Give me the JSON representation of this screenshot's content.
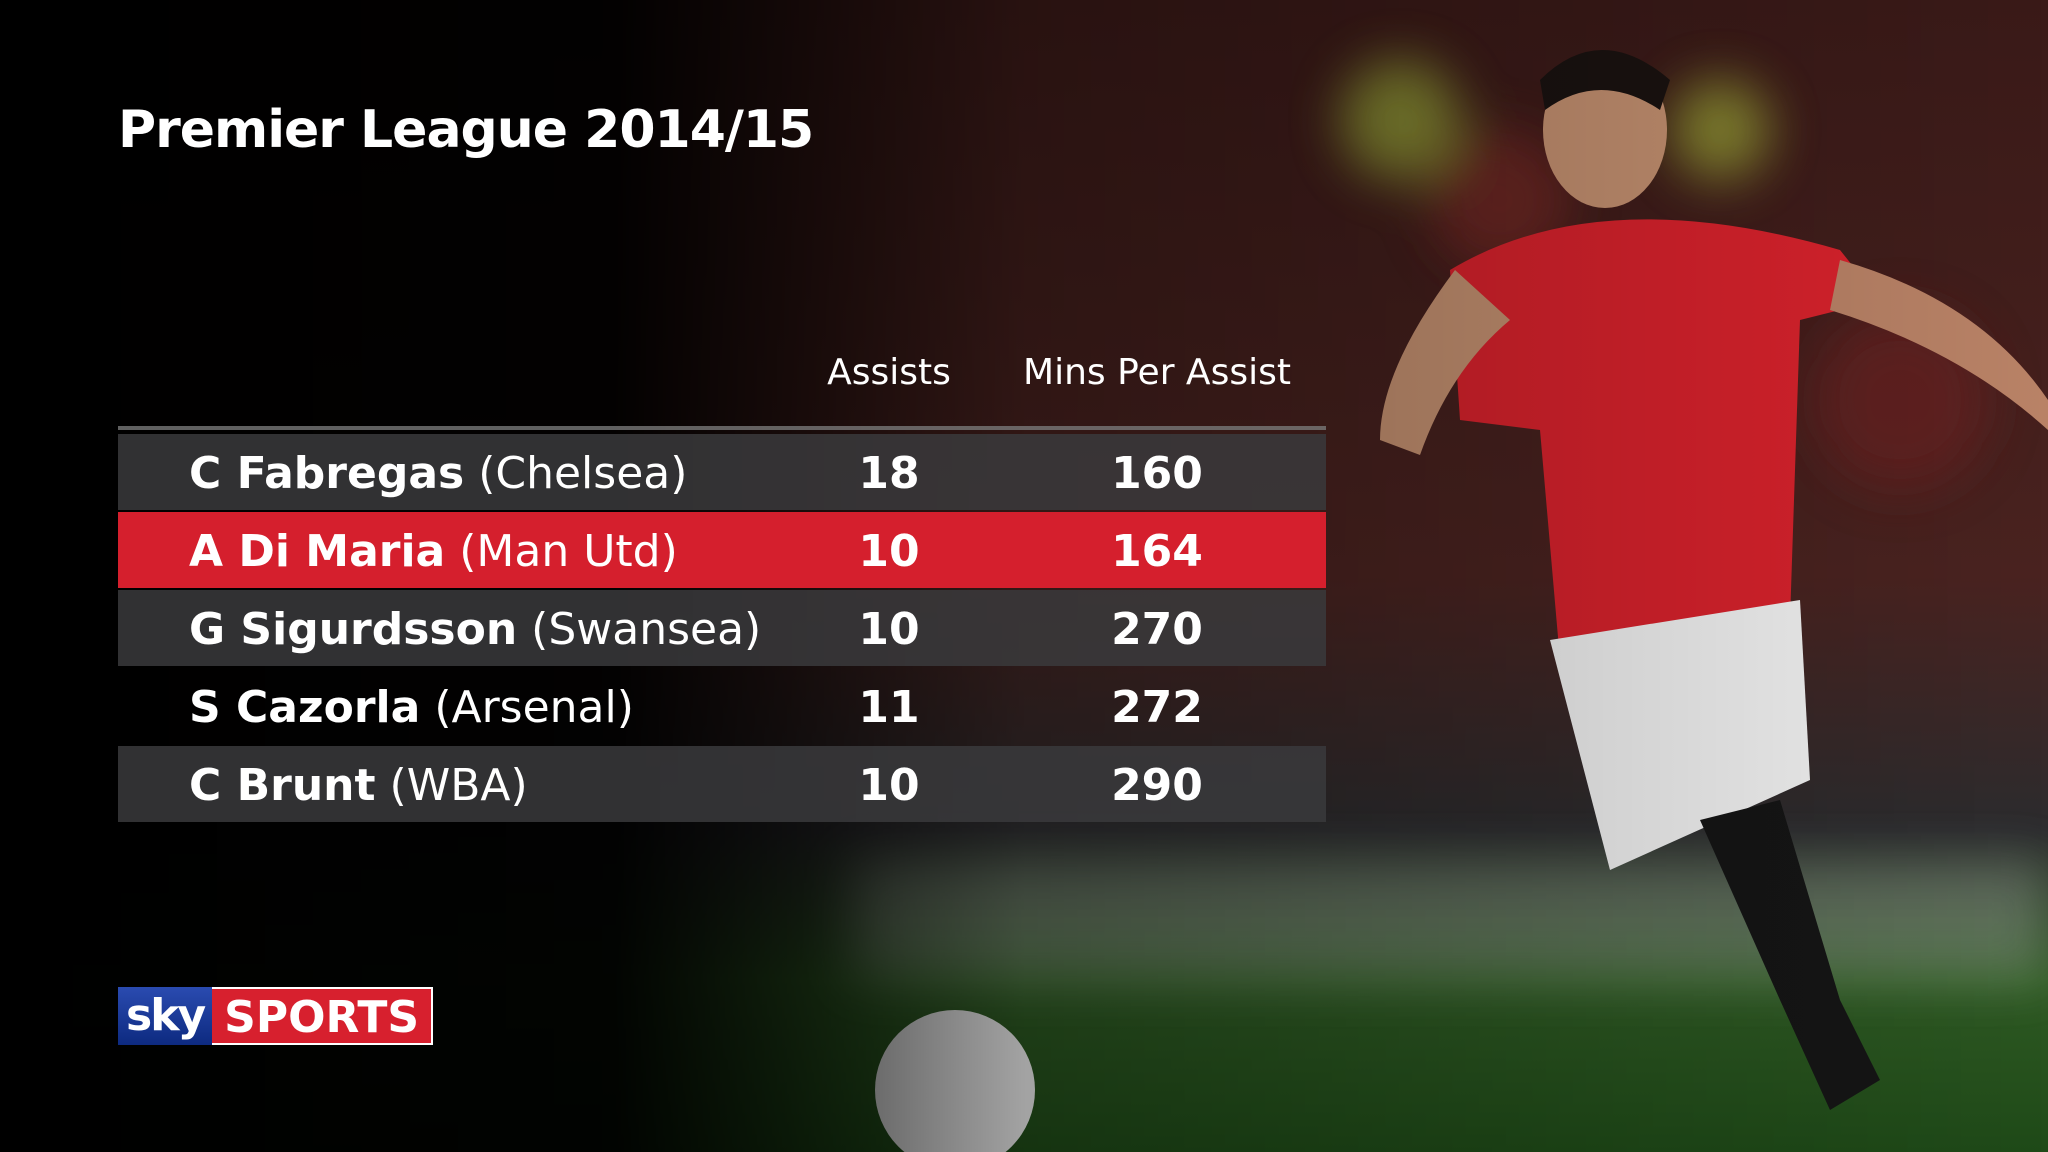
{
  "header": {
    "title": "Premier League 2014/15"
  },
  "table": {
    "columns": [
      "Assists",
      "Mins Per Assist"
    ],
    "rows": [
      {
        "player": "C Fabregas",
        "team": "(Chelsea)",
        "assists": 18,
        "mins_per_assist": 160,
        "highlight": false
      },
      {
        "player": "A Di Maria",
        "team": "(Man Utd)",
        "assists": 10,
        "mins_per_assist": 164,
        "highlight": true
      },
      {
        "player": "G Sigurdsson",
        "team": "(Swansea)",
        "assists": 10,
        "mins_per_assist": 270,
        "highlight": false
      },
      {
        "player": "S Cazorla",
        "team": "(Arsenal)",
        "assists": 11,
        "mins_per_assist": 272,
        "highlight": false
      },
      {
        "player": "C Brunt",
        "team": "(WBA)",
        "assists": 10,
        "mins_per_assist": 290,
        "highlight": false
      }
    ]
  },
  "logo": {
    "sky": "sky",
    "sports": "SPORTS"
  }
}
